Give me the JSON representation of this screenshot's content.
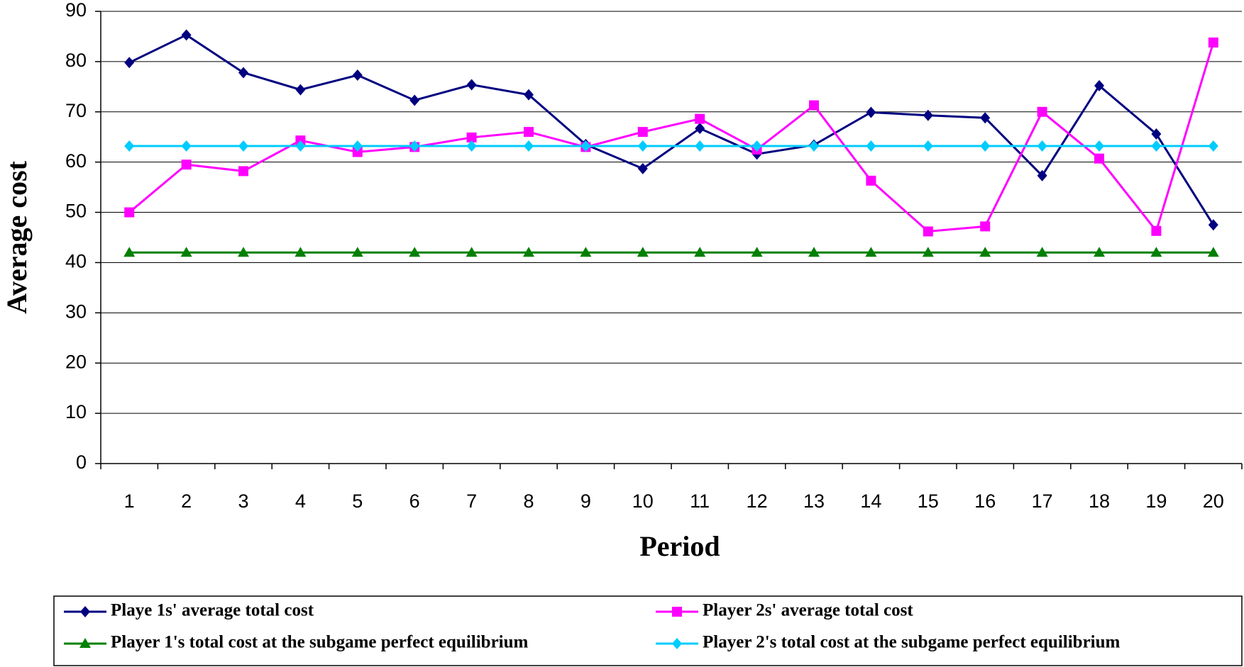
{
  "chart_data": {
    "type": "line",
    "x_label": "Period",
    "y_label": "Average cost",
    "categories": [
      "1",
      "2",
      "3",
      "4",
      "5",
      "6",
      "7",
      "8",
      "9",
      "10",
      "11",
      "12",
      "13",
      "14",
      "15",
      "16",
      "17",
      "18",
      "19",
      "20"
    ],
    "series": [
      {
        "name": "Playe 1s' average total cost",
        "color": "#000080",
        "marker": "diamond",
        "values": [
          79.8,
          85.3,
          77.8,
          74.4,
          77.3,
          72.3,
          75.4,
          73.4,
          63.5,
          58.7,
          66.7,
          61.6,
          63.4,
          69.9,
          69.3,
          68.8,
          57.3,
          75.2,
          65.6,
          47.5
        ]
      },
      {
        "name": "Player 2s' average total cost",
        "color": "#ff00ff",
        "marker": "square",
        "values": [
          50,
          59.5,
          58.2,
          64.3,
          62,
          63,
          64.9,
          66,
          63,
          66,
          68.6,
          62.5,
          71.3,
          56.3,
          46.2,
          47.2,
          70,
          60.7,
          46.3,
          83.8
        ]
      },
      {
        "name": "Player 1's total cost at the subgame perfect equilibrium",
        "color": "#008000",
        "marker": "triangle",
        "values": [
          42,
          42,
          42,
          42,
          42,
          42,
          42,
          42,
          42,
          42,
          42,
          42,
          42,
          42,
          42,
          42,
          42,
          42,
          42,
          42
        ]
      },
      {
        "name": "Player 2's total cost at the subgame perfect equilibrium",
        "color": "#00ccff",
        "marker": "diamond",
        "values": [
          63.2,
          63.2,
          63.2,
          63.2,
          63.2,
          63.2,
          63.2,
          63.2,
          63.2,
          63.2,
          63.2,
          63.2,
          63.2,
          63.2,
          63.2,
          63.2,
          63.2,
          63.2,
          63.2,
          63.2
        ]
      }
    ],
    "ylim": [
      0,
      90
    ],
    "yticks": [
      0,
      10,
      20,
      30,
      40,
      50,
      60,
      70,
      80,
      90
    ],
    "grid": true,
    "legend": "bottom"
  }
}
